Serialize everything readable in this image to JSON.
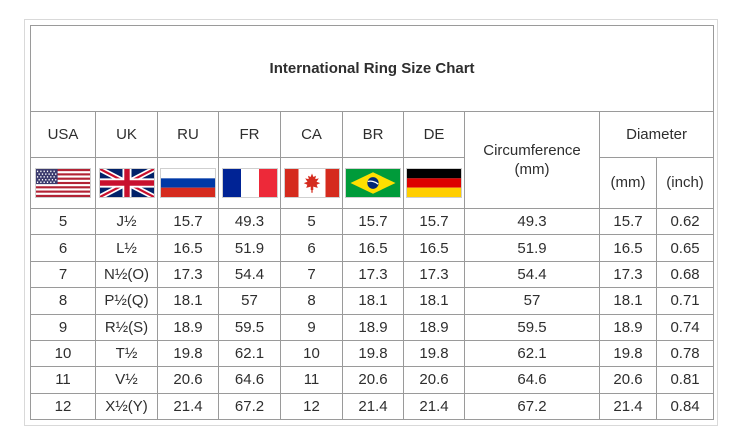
{
  "title": "International Ring Size Chart",
  "colors": {
    "grid_border": "#9a9a9a",
    "outer_border": "#d9d9d9",
    "text": "#2e2e2e"
  },
  "header": {
    "columns": [
      "USA",
      "UK",
      "RU",
      "FR",
      "CA",
      "BR",
      "DE"
    ],
    "flag_icons": [
      "usa-flag",
      "uk-flag",
      "russia-flag",
      "france-flag",
      "canada-flag",
      "brazil-flag",
      "germany-flag"
    ],
    "circumference": {
      "label": "Circumference",
      "unit": "(mm)"
    },
    "diameter": {
      "label": "Diameter",
      "units": [
        "(mm)",
        "(inch)"
      ]
    }
  },
  "chart_data": {
    "type": "table",
    "title": "International Ring Size Chart",
    "columns": [
      "USA",
      "UK",
      "RU",
      "FR",
      "CA",
      "BR",
      "DE",
      "Circumference (mm)",
      "Diameter (mm)",
      "Diameter (inch)"
    ],
    "rows": [
      [
        "5",
        "J½",
        "15.7",
        "49.3",
        "5",
        "15.7",
        "15.7",
        "49.3",
        "15.7",
        "0.62"
      ],
      [
        "6",
        "L½",
        "16.5",
        "51.9",
        "6",
        "16.5",
        "16.5",
        "51.9",
        "16.5",
        "0.65"
      ],
      [
        "7",
        "N½(O)",
        "17.3",
        "54.4",
        "7",
        "17.3",
        "17.3",
        "54.4",
        "17.3",
        "0.68"
      ],
      [
        "8",
        "P½(Q)",
        "18.1",
        "57",
        "8",
        "18.1",
        "18.1",
        "57",
        "18.1",
        "0.71"
      ],
      [
        "9",
        "R½(S)",
        "18.9",
        "59.5",
        "9",
        "18.9",
        "18.9",
        "59.5",
        "18.9",
        "0.74"
      ],
      [
        "10",
        "T½",
        "19.8",
        "62.1",
        "10",
        "19.8",
        "19.8",
        "62.1",
        "19.8",
        "0.78"
      ],
      [
        "11",
        "V½",
        "20.6",
        "64.6",
        "11",
        "20.6",
        "20.6",
        "64.6",
        "20.6",
        "0.81"
      ],
      [
        "12",
        "X½(Y)",
        "21.4",
        "67.2",
        "12",
        "21.4",
        "21.4",
        "67.2",
        "21.4",
        "0.84"
      ]
    ]
  }
}
